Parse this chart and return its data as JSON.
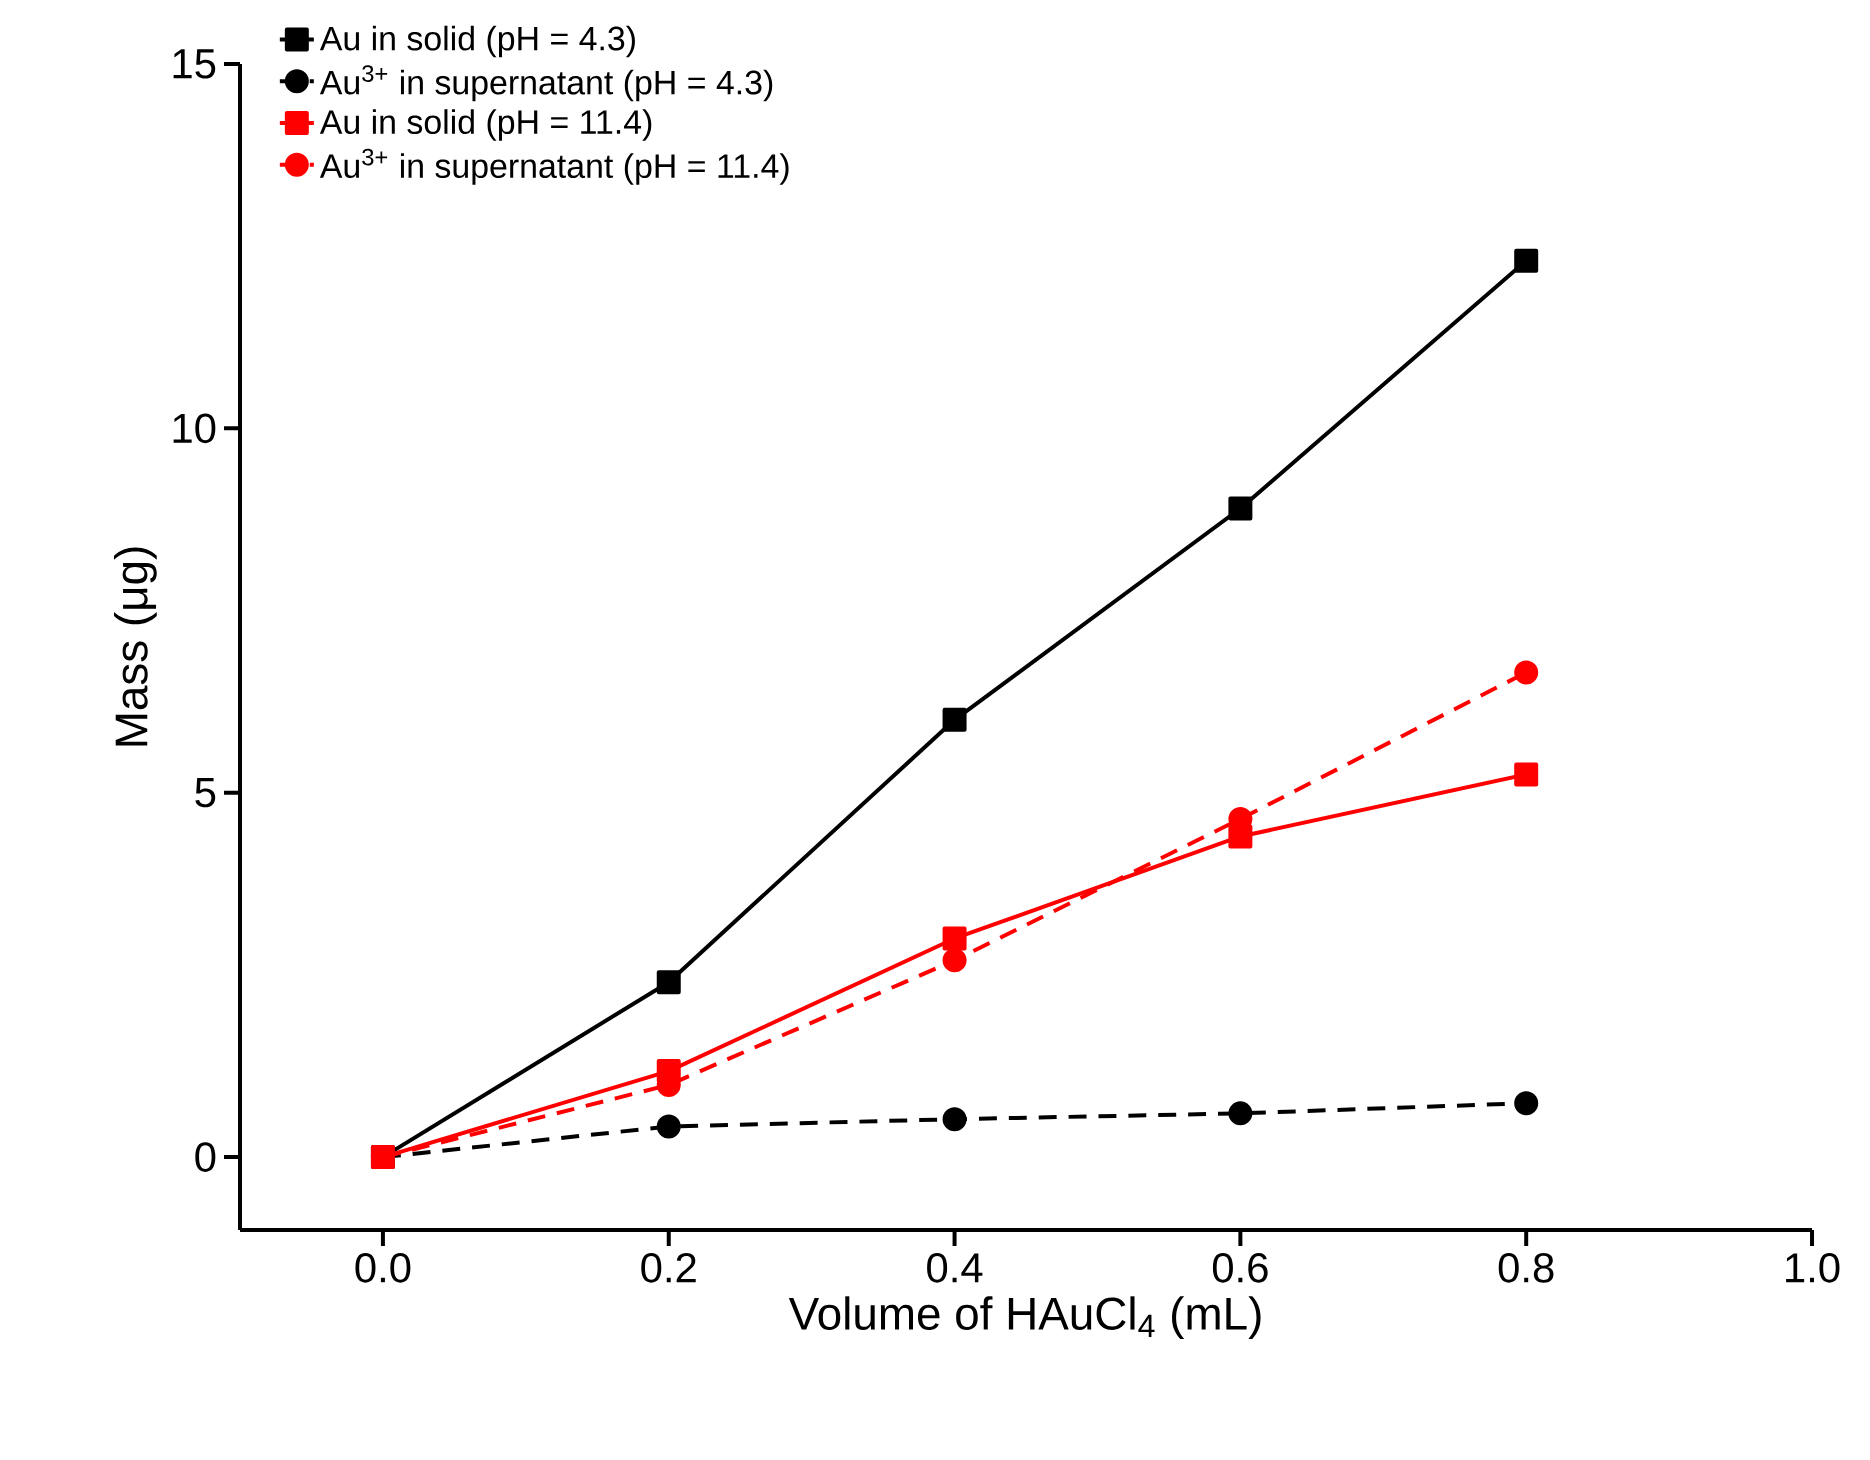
{
  "chart_data": {
    "type": "line",
    "xlabel": "Volume of HAuCl$_{4}$ (mL)",
    "ylabel": "Mass (μg)",
    "x": [
      0.0,
      0.2,
      0.4,
      0.6,
      0.8
    ],
    "xlim": [
      -0.1,
      1.0
    ],
    "ylim": [
      -1,
      15
    ],
    "xticks": [
      {
        "value": 0.0,
        "label": "0.0"
      },
      {
        "value": 0.2,
        "label": "0.2"
      },
      {
        "value": 0.4,
        "label": "0.4"
      },
      {
        "value": 0.6,
        "label": "0.6"
      },
      {
        "value": 0.8,
        "label": "0.8"
      },
      {
        "value": 1.0,
        "label": "1.0"
      }
    ],
    "yticks": [
      0,
      5,
      10,
      15
    ],
    "legend": "top left",
    "grid": false,
    "series": [
      {
        "name": "Au in solid (pH = 4.3)",
        "color": "#000000",
        "values": [
          0,
          2.4,
          6.0,
          8.9,
          12.3
        ],
        "marker": "square",
        "line_style": "solid"
      },
      {
        "name": "Au$^{3+}$ in supernatant (pH = 4.3)",
        "color": "#000000",
        "values": [
          0,
          0.42,
          0.52,
          0.6,
          0.74
        ],
        "marker": "circle",
        "line_style": "dashed"
      },
      {
        "name": "Au in solid (pH = 11.4)",
        "color": "#ff0000",
        "values": [
          0,
          1.18,
          3.0,
          4.4,
          5.25
        ],
        "marker": "square",
        "line_style": "solid"
      },
      {
        "name": "Au$^{3+}$ in supernatant (pH = 11.4)",
        "color": "#ff0000",
        "values": [
          0,
          0.99,
          2.7,
          4.64,
          6.65
        ],
        "marker": "circle",
        "line_style": "dashed"
      }
    ]
  }
}
